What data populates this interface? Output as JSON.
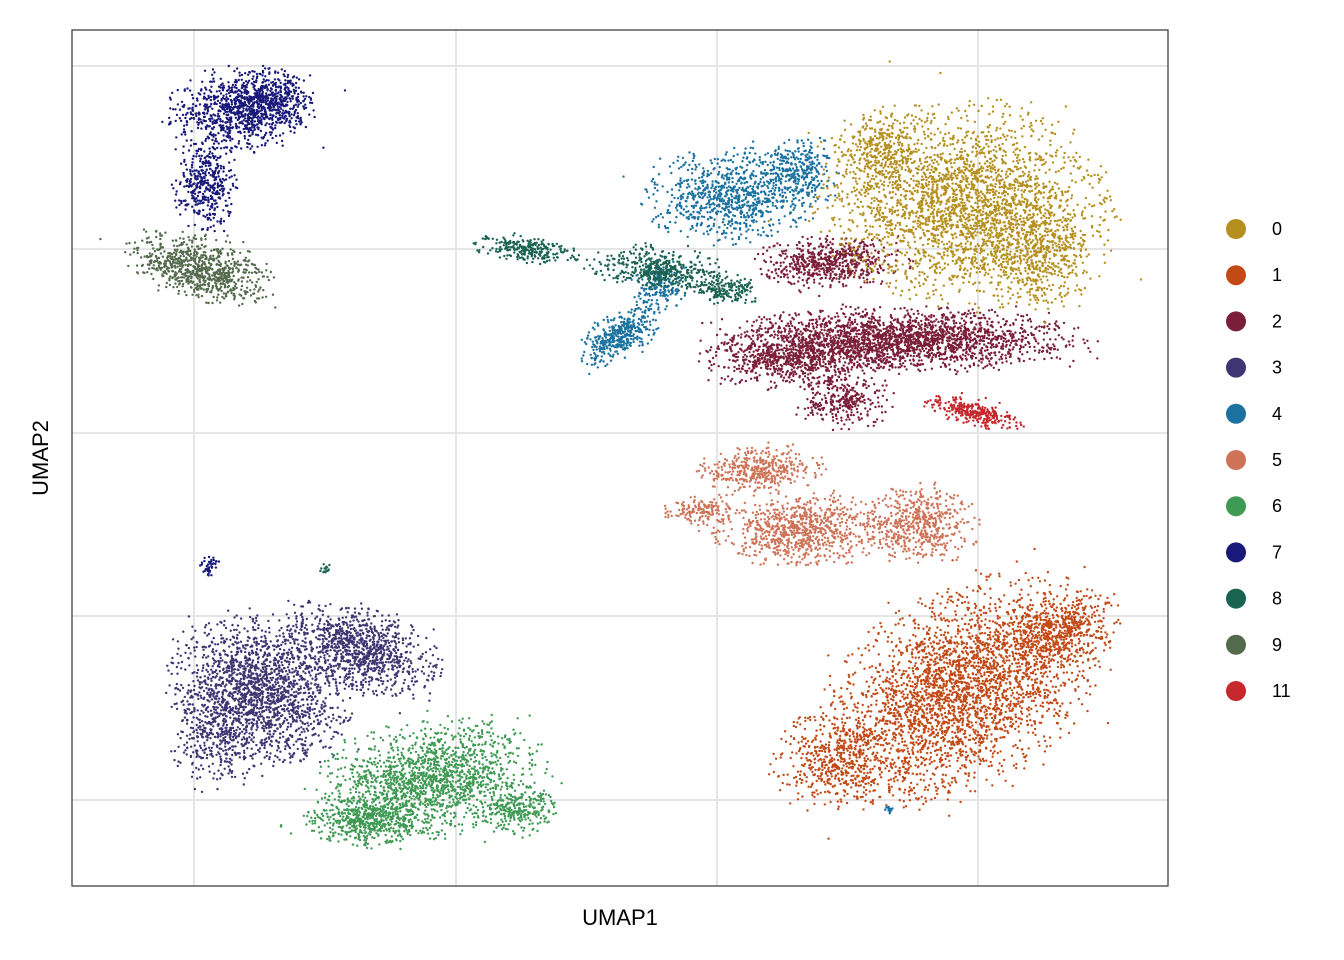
{
  "chart_data": {
    "type": "scatter",
    "title": "",
    "xlabel": "UMAP1",
    "ylabel": "UMAP2",
    "x_tick_labels_shown": false,
    "y_tick_labels_shown": false,
    "grid": true,
    "legend_placement": "right",
    "series": [
      {
        "name": "0",
        "color": "#B5901F"
      },
      {
        "name": "1",
        "color": "#C24A17"
      },
      {
        "name": "2",
        "color": "#7B1E3A"
      },
      {
        "name": "3",
        "color": "#3F3572"
      },
      {
        "name": "4",
        "color": "#1B72A0"
      },
      {
        "name": "5",
        "color": "#CE7357"
      },
      {
        "name": "6",
        "color": "#3F9A53"
      },
      {
        "name": "7",
        "color": "#19197A"
      },
      {
        "name": "8",
        "color": "#1A6351"
      },
      {
        "name": "9",
        "color": "#536A4C"
      },
      {
        "name": "11",
        "color": "#C7282E"
      }
    ]
  }
}
